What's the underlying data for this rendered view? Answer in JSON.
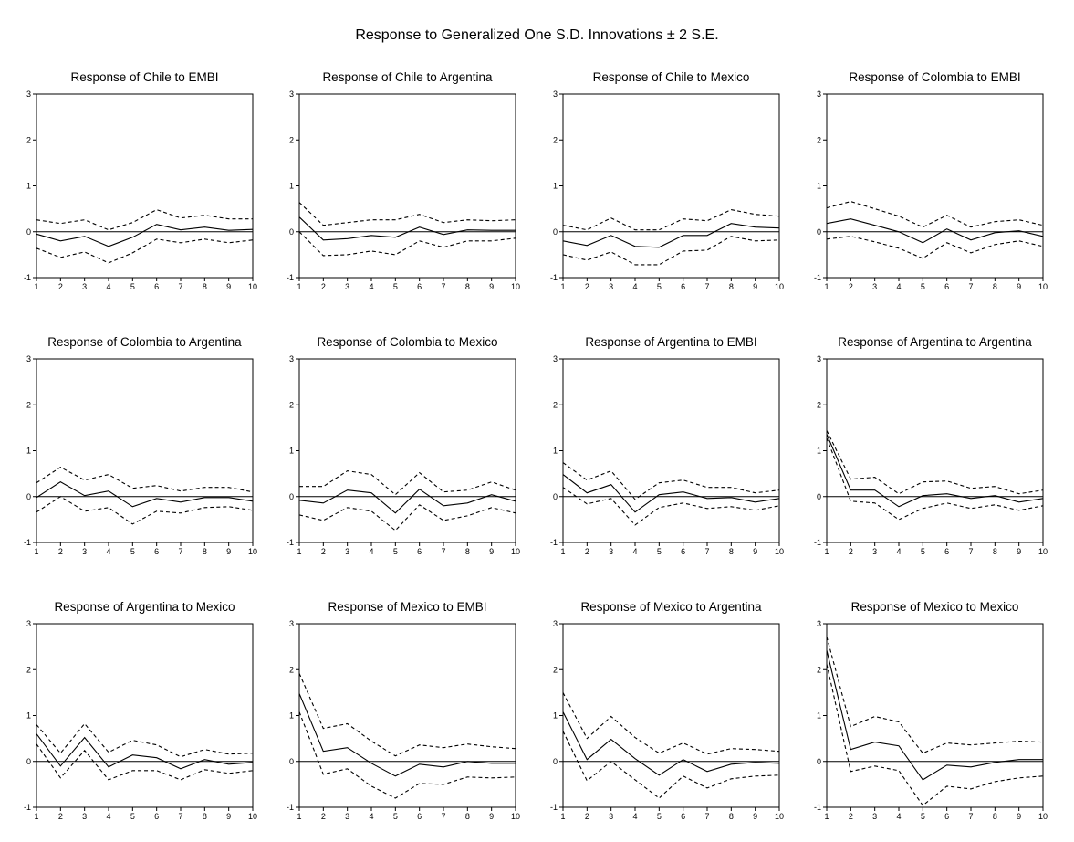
{
  "figure": {
    "title": "Response to Generalized One S.D. Innovations ± 2 S.E."
  },
  "chart_data": [
    {
      "type": "line",
      "title": "Response of Chile to EMBI",
      "x": [
        1,
        2,
        3,
        4,
        5,
        6,
        7,
        8,
        9,
        10
      ],
      "ylim": [
        -1,
        3
      ],
      "yticks": [
        -1,
        0,
        1,
        2,
        3
      ],
      "series": [
        {
          "values": [
            -0.05,
            -0.2,
            -0.1,
            -0.32,
            -0.12,
            0.16,
            0.04,
            0.1,
            0.03,
            0.05
          ]
        },
        {
          "values": [
            0.26,
            0.18,
            0.26,
            0.04,
            0.2,
            0.48,
            0.3,
            0.36,
            0.28,
            0.28
          ]
        },
        {
          "values": [
            -0.36,
            -0.56,
            -0.44,
            -0.68,
            -0.46,
            -0.16,
            -0.24,
            -0.16,
            -0.24,
            -0.18
          ]
        }
      ]
    },
    {
      "type": "line",
      "title": "Response of Chile to Argentina",
      "x": [
        1,
        2,
        3,
        4,
        5,
        6,
        7,
        8,
        9,
        10
      ],
      "ylim": [
        -1,
        3
      ],
      "yticks": [
        -1,
        0,
        1,
        2,
        3
      ],
      "series": [
        {
          "values": [
            0.32,
            -0.18,
            -0.15,
            -0.08,
            -0.12,
            0.1,
            -0.06,
            0.04,
            0.03,
            0.03
          ]
        },
        {
          "values": [
            0.64,
            0.14,
            0.2,
            0.26,
            0.26,
            0.38,
            0.2,
            0.26,
            0.24,
            0.26
          ]
        },
        {
          "values": [
            0.0,
            -0.52,
            -0.5,
            -0.42,
            -0.5,
            -0.2,
            -0.34,
            -0.2,
            -0.2,
            -0.14
          ]
        }
      ]
    },
    {
      "type": "line",
      "title": "Response of Chile to Mexico",
      "x": [
        1,
        2,
        3,
        4,
        5,
        6,
        7,
        8,
        9,
        10
      ],
      "ylim": [
        -1,
        3
      ],
      "yticks": [
        -1,
        0,
        1,
        2,
        3
      ],
      "series": [
        {
          "values": [
            -0.2,
            -0.3,
            -0.08,
            -0.32,
            -0.34,
            -0.08,
            -0.08,
            0.18,
            0.1,
            0.08
          ]
        },
        {
          "values": [
            0.14,
            0.04,
            0.3,
            0.04,
            0.04,
            0.28,
            0.24,
            0.48,
            0.38,
            0.34
          ]
        },
        {
          "values": [
            -0.5,
            -0.62,
            -0.44,
            -0.72,
            -0.72,
            -0.42,
            -0.4,
            -0.1,
            -0.2,
            -0.18
          ]
        }
      ]
    },
    {
      "type": "line",
      "title": "Response of Colombia to EMBI",
      "x": [
        1,
        2,
        3,
        4,
        5,
        6,
        7,
        8,
        9,
        10
      ],
      "ylim": [
        -1,
        3
      ],
      "yticks": [
        -1,
        0,
        1,
        2,
        3
      ],
      "series": [
        {
          "values": [
            0.18,
            0.28,
            0.14,
            0.0,
            -0.24,
            0.06,
            -0.18,
            -0.02,
            0.02,
            -0.1
          ]
        },
        {
          "values": [
            0.52,
            0.66,
            0.5,
            0.34,
            0.1,
            0.36,
            0.1,
            0.22,
            0.26,
            0.14
          ]
        },
        {
          "values": [
            -0.16,
            -0.1,
            -0.22,
            -0.36,
            -0.58,
            -0.24,
            -0.46,
            -0.28,
            -0.2,
            -0.32
          ]
        }
      ]
    },
    {
      "type": "line",
      "title": "Response of Colombia to Argentina",
      "x": [
        1,
        2,
        3,
        4,
        5,
        6,
        7,
        8,
        9,
        10
      ],
      "ylim": [
        -1,
        3
      ],
      "yticks": [
        -1,
        0,
        1,
        2,
        3
      ],
      "series": [
        {
          "values": [
            -0.02,
            0.32,
            0.02,
            0.12,
            -0.22,
            -0.04,
            -0.12,
            -0.02,
            -0.02,
            -0.1
          ]
        },
        {
          "values": [
            0.3,
            0.64,
            0.36,
            0.48,
            0.18,
            0.24,
            0.12,
            0.2,
            0.2,
            0.1
          ]
        },
        {
          "values": [
            -0.34,
            0.0,
            -0.32,
            -0.24,
            -0.6,
            -0.32,
            -0.36,
            -0.24,
            -0.22,
            -0.3
          ]
        }
      ]
    },
    {
      "type": "line",
      "title": "Response of Colombia to Mexico",
      "x": [
        1,
        2,
        3,
        4,
        5,
        6,
        7,
        8,
        9,
        10
      ],
      "ylim": [
        -1,
        3
      ],
      "yticks": [
        -1,
        0,
        1,
        2,
        3
      ],
      "series": [
        {
          "values": [
            -0.08,
            -0.14,
            0.14,
            0.08,
            -0.36,
            0.16,
            -0.2,
            -0.14,
            0.04,
            -0.1
          ]
        },
        {
          "values": [
            0.22,
            0.22,
            0.56,
            0.48,
            0.04,
            0.52,
            0.1,
            0.14,
            0.32,
            0.14
          ]
        },
        {
          "values": [
            -0.4,
            -0.52,
            -0.24,
            -0.32,
            -0.74,
            -0.18,
            -0.52,
            -0.42,
            -0.24,
            -0.36
          ]
        }
      ]
    },
    {
      "type": "line",
      "title": "Response of Argentina to EMBI",
      "x": [
        1,
        2,
        3,
        4,
        5,
        6,
        7,
        8,
        9,
        10
      ],
      "ylim": [
        -1,
        3
      ],
      "yticks": [
        -1,
        0,
        1,
        2,
        3
      ],
      "series": [
        {
          "values": [
            0.48,
            0.08,
            0.26,
            -0.34,
            0.04,
            0.1,
            -0.04,
            -0.02,
            -0.12,
            -0.04
          ]
        },
        {
          "values": [
            0.74,
            0.36,
            0.56,
            -0.06,
            0.3,
            0.36,
            0.2,
            0.2,
            0.08,
            0.14
          ]
        },
        {
          "values": [
            0.2,
            -0.16,
            -0.04,
            -0.62,
            -0.24,
            -0.14,
            -0.26,
            -0.22,
            -0.3,
            -0.2
          ]
        }
      ]
    },
    {
      "type": "line",
      "title": "Response of Argentina to Argentina",
      "x": [
        1,
        2,
        3,
        4,
        5,
        6,
        7,
        8,
        9,
        10
      ],
      "ylim": [
        -1,
        3
      ],
      "yticks": [
        -1,
        0,
        1,
        2,
        3
      ],
      "series": [
        {
          "values": [
            1.36,
            0.14,
            0.14,
            -0.22,
            0.02,
            0.06,
            -0.04,
            0.02,
            -0.12,
            -0.04
          ]
        },
        {
          "values": [
            1.44,
            0.38,
            0.42,
            0.06,
            0.32,
            0.34,
            0.18,
            0.22,
            0.06,
            0.14
          ]
        },
        {
          "values": [
            1.28,
            -0.1,
            -0.14,
            -0.5,
            -0.26,
            -0.14,
            -0.26,
            -0.18,
            -0.3,
            -0.2
          ]
        }
      ]
    },
    {
      "type": "line",
      "title": "Response of Argentina to Mexico",
      "x": [
        1,
        2,
        3,
        4,
        5,
        6,
        7,
        8,
        9,
        10
      ],
      "ylim": [
        -1,
        3
      ],
      "yticks": [
        -1,
        0,
        1,
        2,
        3
      ],
      "series": [
        {
          "values": [
            0.6,
            -0.1,
            0.52,
            -0.12,
            0.14,
            0.08,
            -0.16,
            0.04,
            -0.06,
            -0.02
          ]
        },
        {
          "values": [
            0.8,
            0.18,
            0.82,
            0.2,
            0.46,
            0.36,
            0.1,
            0.26,
            0.16,
            0.18
          ]
        },
        {
          "values": [
            0.38,
            -0.36,
            0.24,
            -0.4,
            -0.2,
            -0.2,
            -0.4,
            -0.18,
            -0.26,
            -0.2
          ]
        }
      ]
    },
    {
      "type": "line",
      "title": "Response of Mexico to EMBI",
      "x": [
        1,
        2,
        3,
        4,
        5,
        6,
        7,
        8,
        9,
        10
      ],
      "ylim": [
        -1,
        3
      ],
      "yticks": [
        -1,
        0,
        1,
        2,
        3
      ],
      "series": [
        {
          "values": [
            1.48,
            0.22,
            0.3,
            -0.04,
            -0.32,
            -0.06,
            -0.12,
            0.0,
            -0.04,
            -0.04
          ]
        },
        {
          "values": [
            1.92,
            0.72,
            0.82,
            0.44,
            0.12,
            0.36,
            0.3,
            0.38,
            0.32,
            0.28
          ]
        },
        {
          "values": [
            1.08,
            -0.28,
            -0.16,
            -0.54,
            -0.8,
            -0.48,
            -0.5,
            -0.34,
            -0.36,
            -0.34
          ]
        }
      ]
    },
    {
      "type": "line",
      "title": "Response of Mexico to Argentina",
      "x": [
        1,
        2,
        3,
        4,
        5,
        6,
        7,
        8,
        9,
        10
      ],
      "ylim": [
        -1,
        3
      ],
      "yticks": [
        -1,
        0,
        1,
        2,
        3
      ],
      "series": [
        {
          "values": [
            1.08,
            0.04,
            0.48,
            0.06,
            -0.3,
            0.04,
            -0.22,
            -0.06,
            -0.02,
            -0.04
          ]
        },
        {
          "values": [
            1.5,
            0.5,
            0.98,
            0.52,
            0.18,
            0.4,
            0.16,
            0.28,
            0.26,
            0.22
          ]
        },
        {
          "values": [
            0.66,
            -0.42,
            0.0,
            -0.4,
            -0.8,
            -0.32,
            -0.58,
            -0.38,
            -0.32,
            -0.3
          ]
        }
      ]
    },
    {
      "type": "line",
      "title": "Response of Mexico to Mexico",
      "x": [
        1,
        2,
        3,
        4,
        5,
        6,
        7,
        8,
        9,
        10
      ],
      "ylim": [
        -1,
        3
      ],
      "yticks": [
        -1,
        0,
        1,
        2,
        3
      ],
      "series": [
        {
          "values": [
            2.42,
            0.26,
            0.42,
            0.34,
            -0.4,
            -0.08,
            -0.12,
            -0.02,
            0.04,
            0.04
          ]
        },
        {
          "values": [
            2.72,
            0.76,
            0.98,
            0.86,
            0.18,
            0.4,
            0.36,
            0.4,
            0.44,
            0.42
          ]
        },
        {
          "values": [
            2.12,
            -0.22,
            -0.1,
            -0.2,
            -0.96,
            -0.54,
            -0.6,
            -0.44,
            -0.36,
            -0.32
          ]
        }
      ]
    }
  ]
}
